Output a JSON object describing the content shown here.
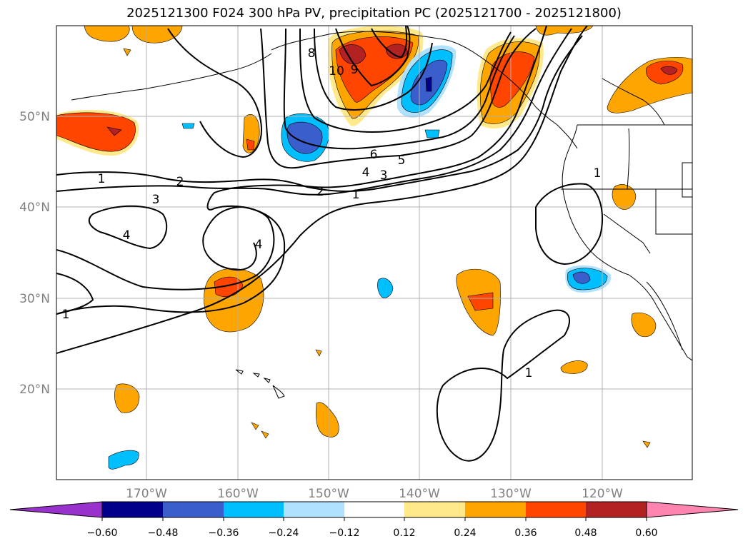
{
  "title": "2025121300 F024 300 hPa PV, precipitation PC (2025121700 - 2025121800)",
  "map": {
    "lon_labels": [
      "170°W",
      "160°W",
      "150°W",
      "140°W",
      "130°W",
      "120°W"
    ],
    "lat_labels": [
      "20°N",
      "30°N",
      "40°N",
      "50°N"
    ],
    "contour_labels": [
      "1",
      "2",
      "3",
      "4",
      "5",
      "6",
      "8",
      "9",
      "10"
    ]
  },
  "colorbar": {
    "ticks": [
      "−0.60",
      "−0.48",
      "−0.36",
      "−0.24",
      "−0.12",
      "0.12",
      "0.24",
      "0.36",
      "0.48",
      "0.60"
    ],
    "colors": [
      "#9932cc",
      "#00008b",
      "#3a5fcd",
      "#00bfff",
      "#b0e2ff",
      "#ffffff",
      "#ffe98a",
      "#ffa500",
      "#ff4500",
      "#b22222",
      "#ff85b0"
    ]
  }
}
